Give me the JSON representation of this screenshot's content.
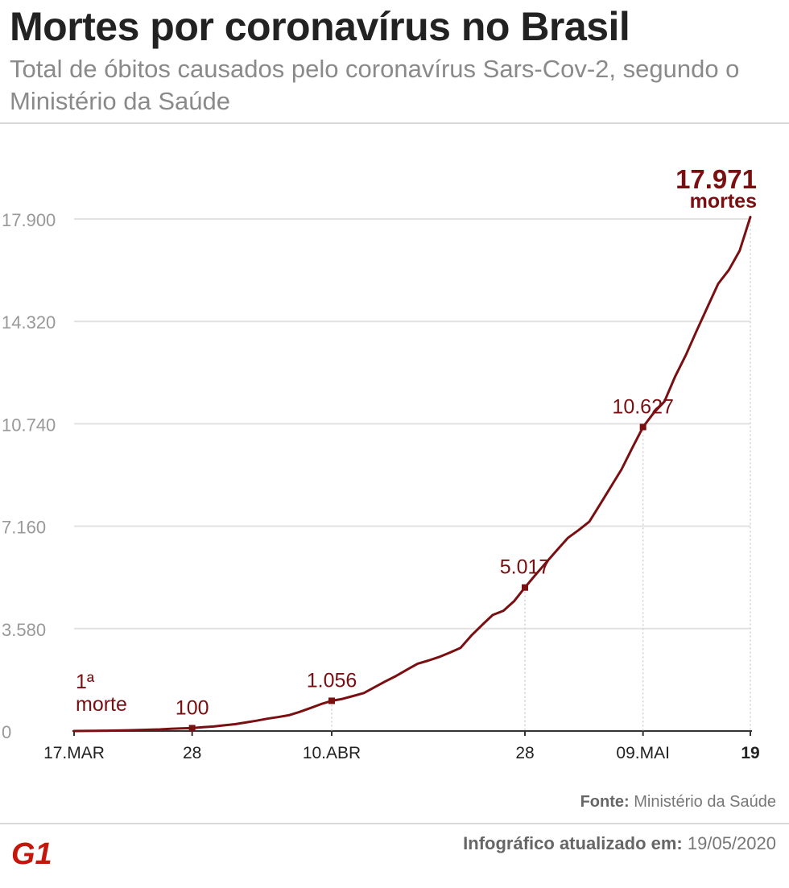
{
  "header": {
    "title": "Mortes por coronavírus no Brasil",
    "subtitle": "Total de óbitos causados pelo coronavírus Sars-Cov-2, segundo o Ministério da Saúde"
  },
  "chart_data": {
    "type": "line",
    "title": "Mortes por coronavírus no Brasil",
    "subtitle": "Total de óbitos causados pelo coronavírus Sars-Cov-2, segundo o Ministério da Saúde",
    "xlabel": "",
    "ylabel": "",
    "ylim": [
      0,
      17900
    ],
    "y_ticks": [
      0,
      3580,
      7160,
      10740,
      14320,
      17900
    ],
    "y_tick_labels": [
      "0",
      "3.580",
      "7.160",
      "10.740",
      "14.320",
      "17.900"
    ],
    "grid": true,
    "x_ticks": [
      {
        "date": "2020-03-17",
        "label": "17.MAR",
        "bold": false
      },
      {
        "date": "2020-03-28",
        "label": "28",
        "bold": false
      },
      {
        "date": "2020-04-10",
        "label": "10.ABR",
        "bold": false
      },
      {
        "date": "2020-04-28",
        "label": "28",
        "bold": false
      },
      {
        "date": "2020-05-09",
        "label": "09.MAI",
        "bold": false
      },
      {
        "date": "2020-05-19",
        "label": "19",
        "bold": true
      }
    ],
    "series": [
      {
        "color": "#7a0f12",
        "points": [
          [
            "2020-03-17",
            1
          ],
          [
            "2020-03-18",
            4
          ],
          [
            "2020-03-19",
            7
          ],
          [
            "2020-03-20",
            11
          ],
          [
            "2020-03-21",
            18
          ],
          [
            "2020-03-22",
            25
          ],
          [
            "2020-03-23",
            34
          ],
          [
            "2020-03-24",
            46
          ],
          [
            "2020-03-25",
            57
          ],
          [
            "2020-03-26",
            77
          ],
          [
            "2020-03-27",
            92
          ],
          [
            "2020-03-28",
            100
          ],
          [
            "2020-03-29",
            136
          ],
          [
            "2020-03-30",
            159
          ],
          [
            "2020-03-31",
            201
          ],
          [
            "2020-04-01",
            240
          ],
          [
            "2020-04-02",
            299
          ],
          [
            "2020-04-03",
            359
          ],
          [
            "2020-04-04",
            432
          ],
          [
            "2020-04-05",
            486
          ],
          [
            "2020-04-06",
            553
          ],
          [
            "2020-04-07",
            667
          ],
          [
            "2020-04-08",
            800
          ],
          [
            "2020-04-09",
            941
          ],
          [
            "2020-04-10",
            1056
          ],
          [
            "2020-04-11",
            1124
          ],
          [
            "2020-04-12",
            1223
          ],
          [
            "2020-04-13",
            1328
          ],
          [
            "2020-04-14",
            1532
          ],
          [
            "2020-04-15",
            1736
          ],
          [
            "2020-04-16",
            1924
          ],
          [
            "2020-04-17",
            2141
          ],
          [
            "2020-04-18",
            2354
          ],
          [
            "2020-04-19",
            2462
          ],
          [
            "2020-04-20",
            2587
          ],
          [
            "2020-04-21",
            2741
          ],
          [
            "2020-04-22",
            2906
          ],
          [
            "2020-04-23",
            3331
          ],
          [
            "2020-04-24",
            3704
          ],
          [
            "2020-04-25",
            4057
          ],
          [
            "2020-04-26",
            4205
          ],
          [
            "2020-04-27",
            4543
          ],
          [
            "2020-04-28",
            5017
          ],
          [
            "2020-04-29",
            5466
          ],
          [
            "2020-04-30",
            5901
          ],
          [
            "2020-05-01",
            6329
          ],
          [
            "2020-05-02",
            6750
          ],
          [
            "2020-05-03",
            7025
          ],
          [
            "2020-05-04",
            7321
          ],
          [
            "2020-05-05",
            7921
          ],
          [
            "2020-05-06",
            8536
          ],
          [
            "2020-05-07",
            9146
          ],
          [
            "2020-05-08",
            9897
          ],
          [
            "2020-05-09",
            10627
          ],
          [
            "2020-05-10",
            11123
          ],
          [
            "2020-05-11",
            11519
          ],
          [
            "2020-05-12",
            12400
          ],
          [
            "2020-05-13",
            13149
          ],
          [
            "2020-05-14",
            13993
          ],
          [
            "2020-05-15",
            14817
          ],
          [
            "2020-05-16",
            15633
          ],
          [
            "2020-05-17",
            16118
          ],
          [
            "2020-05-18",
            16792
          ],
          [
            "2020-05-19",
            17971
          ]
        ]
      }
    ],
    "annotations": [
      {
        "date": "2020-03-17",
        "value": 1,
        "line1": "1ª",
        "line2": "morte"
      },
      {
        "date": "2020-03-28",
        "value": 100,
        "line1": "100"
      },
      {
        "date": "2020-04-10",
        "value": 1056,
        "line1": "1.056"
      },
      {
        "date": "2020-04-28",
        "value": 5017,
        "line1": "5.017"
      },
      {
        "date": "2020-05-09",
        "value": 10627,
        "line1": "10.627"
      },
      {
        "date": "2020-05-19",
        "value": 17971,
        "line1": "17.971",
        "line2": "mortes"
      }
    ],
    "colors": {
      "line": "#7a0f12",
      "grid": "#e2e2e2",
      "axis_text": "#999999",
      "tick_text": "#222222"
    }
  },
  "footer": {
    "source_label": "Fonte:",
    "source_value": " Ministério da Saúde",
    "updated_label": "Infográfico atualizado em:",
    "updated_value": " 19/05/2020",
    "logo_text": "G1",
    "logo_color": "#c4170c"
  }
}
